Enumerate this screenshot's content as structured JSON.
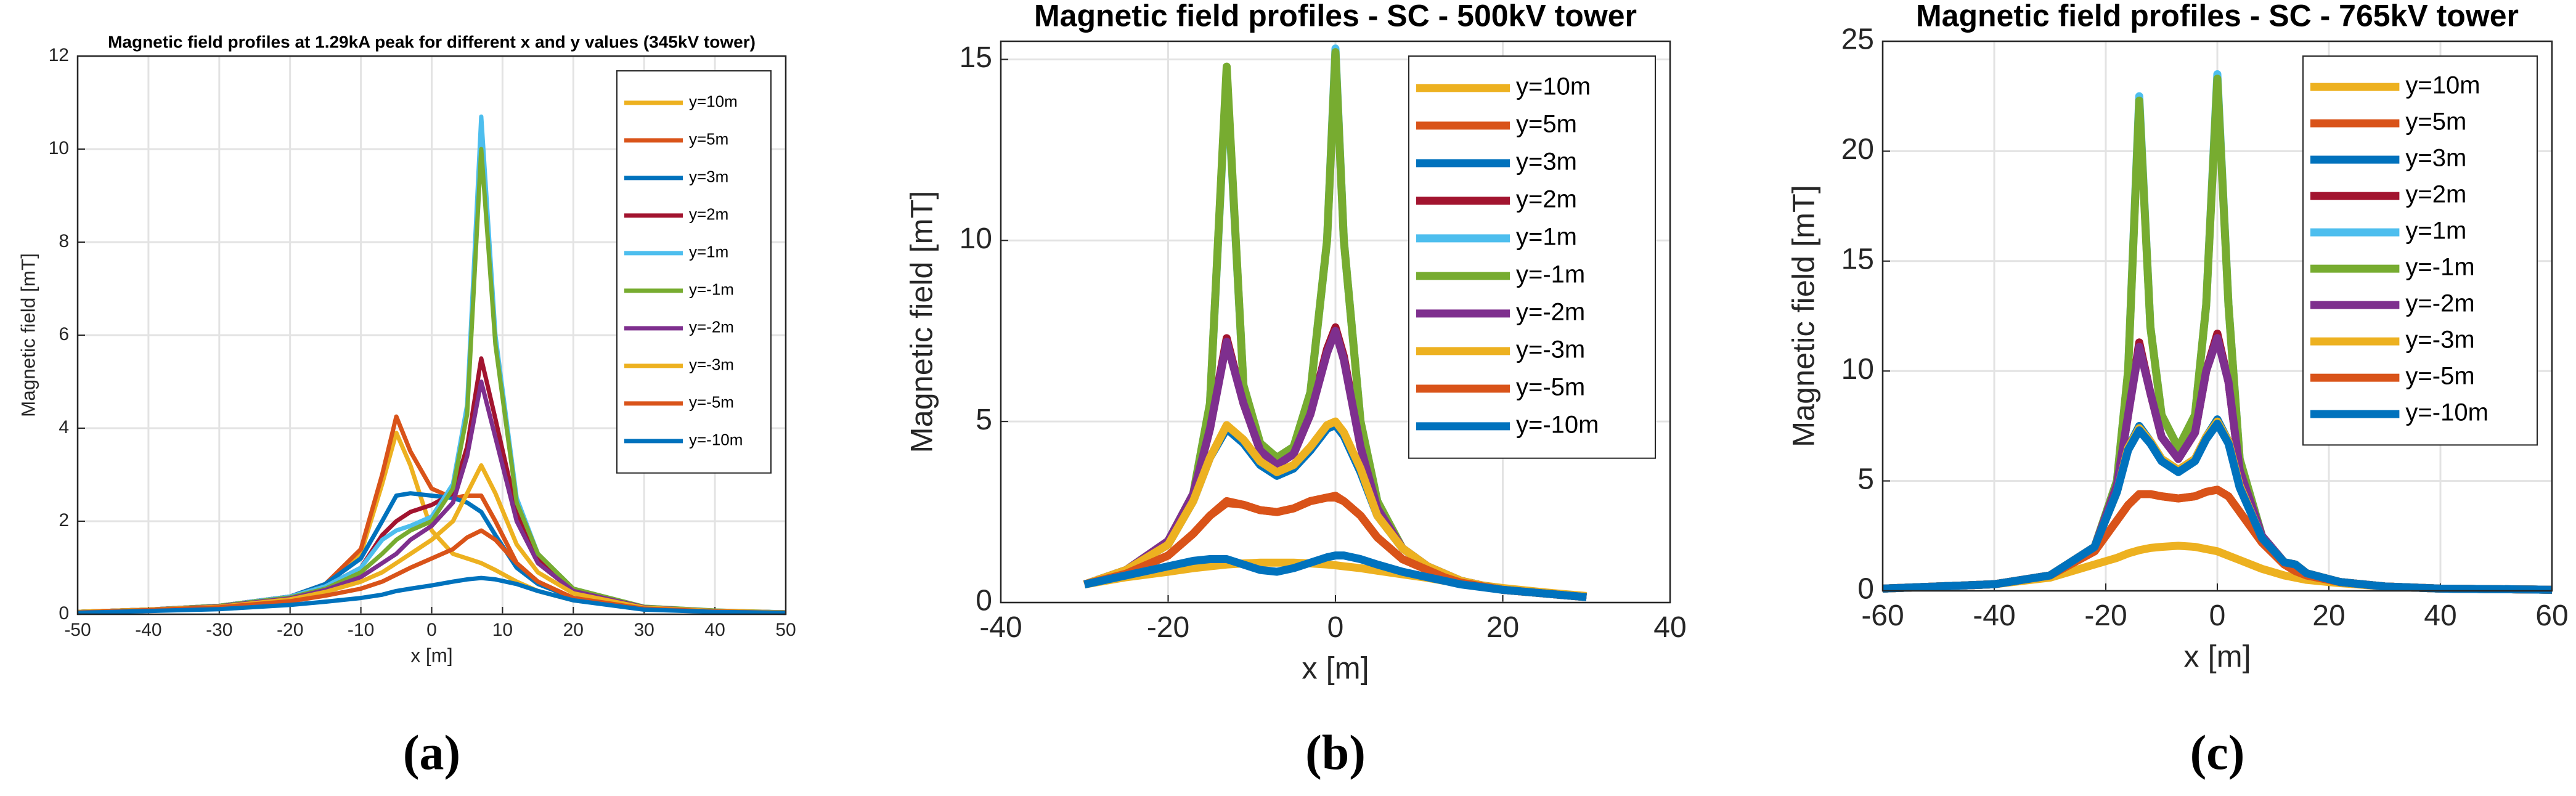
{
  "chart_data": [
    {
      "type": "line",
      "title": "Magnetic field profiles at 1.29kA peak for different x and y values (345kV tower)",
      "xlabel": "x [m]",
      "ylabel": "Magnetic field [mT]",
      "caption": "(a)",
      "x": [
        -50,
        -40,
        -30,
        -20,
        -15,
        -10,
        -7,
        -5,
        -3,
        0,
        3,
        5,
        7,
        9,
        12,
        15,
        20,
        30,
        40,
        50
      ],
      "xlim": [
        -50,
        50
      ],
      "xticks": [
        -50,
        -40,
        -30,
        -20,
        -10,
        0,
        10,
        20,
        30,
        40,
        50
      ],
      "ylim": [
        0,
        12
      ],
      "yticks": [
        0,
        2,
        4,
        6,
        8,
        10,
        12
      ],
      "grid": true,
      "legend": "upper right",
      "series": [
        {
          "name": "y=10m",
          "color": "#EDB120",
          "values": [
            0.05,
            0.1,
            0.17,
            0.35,
            0.6,
            1.3,
            2.8,
            3.9,
            3.2,
            1.8,
            1.3,
            1.2,
            1.1,
            0.95,
            0.7,
            0.5,
            0.3,
            0.12,
            0.07,
            0.04
          ]
        },
        {
          "name": "y=5m",
          "color": "#D95319",
          "values": [
            0.05,
            0.1,
            0.18,
            0.38,
            0.65,
            1.4,
            3.0,
            4.25,
            3.5,
            2.7,
            2.5,
            2.55,
            2.55,
            2.0,
            1.1,
            0.7,
            0.35,
            0.13,
            0.07,
            0.04
          ]
        },
        {
          "name": "y=3m",
          "color": "#0072BD",
          "values": [
            0.05,
            0.1,
            0.18,
            0.38,
            0.65,
            1.2,
            2.0,
            2.55,
            2.6,
            2.55,
            2.5,
            2.4,
            2.2,
            1.7,
            1.0,
            0.65,
            0.35,
            0.13,
            0.07,
            0.04
          ]
        },
        {
          "name": "y=2m",
          "color": "#A2142F",
          "values": [
            0.05,
            0.1,
            0.18,
            0.38,
            0.6,
            1.0,
            1.7,
            2.0,
            2.2,
            2.35,
            2.6,
            3.6,
            5.5,
            4.2,
            2.2,
            1.2,
            0.5,
            0.15,
            0.07,
            0.04
          ]
        },
        {
          "name": "y=1m",
          "color": "#4DBEEE",
          "values": [
            0.05,
            0.1,
            0.18,
            0.38,
            0.6,
            1.0,
            1.6,
            1.8,
            1.9,
            2.1,
            2.8,
            4.5,
            10.7,
            6.0,
            2.5,
            1.3,
            0.55,
            0.16,
            0.08,
            0.04
          ]
        },
        {
          "name": "y=-1m",
          "color": "#77AC30",
          "values": [
            0.05,
            0.1,
            0.18,
            0.36,
            0.55,
            0.9,
            1.3,
            1.6,
            1.8,
            2.0,
            2.7,
            4.3,
            10.0,
            5.8,
            2.4,
            1.3,
            0.55,
            0.16,
            0.08,
            0.04
          ]
        },
        {
          "name": "y=-2m",
          "color": "#7E2F8E",
          "values": [
            0.05,
            0.1,
            0.17,
            0.34,
            0.52,
            0.8,
            1.1,
            1.3,
            1.6,
            1.9,
            2.4,
            3.4,
            5.0,
            3.8,
            2.0,
            1.1,
            0.5,
            0.15,
            0.07,
            0.04
          ]
        },
        {
          "name": "y=-3m",
          "color": "#EDB120",
          "values": [
            0.05,
            0.1,
            0.16,
            0.32,
            0.48,
            0.7,
            0.9,
            1.1,
            1.3,
            1.6,
            2.0,
            2.6,
            3.2,
            2.6,
            1.5,
            0.9,
            0.45,
            0.14,
            0.07,
            0.04
          ]
        },
        {
          "name": "y=-5m",
          "color": "#D95319",
          "values": [
            0.04,
            0.09,
            0.15,
            0.28,
            0.4,
            0.55,
            0.7,
            0.85,
            1.0,
            1.2,
            1.4,
            1.65,
            1.8,
            1.6,
            1.1,
            0.7,
            0.35,
            0.12,
            0.06,
            0.03
          ]
        },
        {
          "name": "y=-10m",
          "color": "#0072BD",
          "values": [
            0.03,
            0.07,
            0.11,
            0.2,
            0.27,
            0.35,
            0.42,
            0.5,
            0.55,
            0.62,
            0.7,
            0.75,
            0.78,
            0.75,
            0.65,
            0.5,
            0.3,
            0.1,
            0.05,
            0.03
          ]
        }
      ]
    },
    {
      "type": "line",
      "title": "Magnetic field profiles - SC - 500kV tower",
      "xlabel": "x [m]",
      "ylabel": "Magnetic field [mT]",
      "caption": "(b)",
      "x": [
        -30,
        -25,
        -20,
        -17,
        -15,
        -13,
        -11,
        -9,
        -7,
        -5,
        -3,
        -1,
        0,
        1,
        3,
        5,
        8,
        11,
        13,
        15,
        20,
        25,
        30
      ],
      "xlim": [
        -40,
        40
      ],
      "xticks": [
        -40,
        -20,
        0,
        20,
        40
      ],
      "ylim": [
        0,
        15.5
      ],
      "yticks": [
        0,
        5,
        10,
        15
      ],
      "grid": true,
      "legend": "upper right",
      "series": [
        {
          "name": "y=10m",
          "color": "#EDB120",
          "values": [
            0.5,
            0.7,
            0.85,
            0.95,
            1.0,
            1.05,
            1.08,
            1.1,
            1.1,
            1.1,
            1.08,
            1.05,
            1.03,
            1.0,
            0.95,
            0.88,
            0.78,
            0.68,
            0.6,
            0.55,
            0.4,
            0.28,
            0.18
          ]
        },
        {
          "name": "y=5m",
          "color": "#D95319",
          "values": [
            0.5,
            0.8,
            1.3,
            1.9,
            2.4,
            2.75,
            2.7,
            2.55,
            2.5,
            2.6,
            2.8,
            2.9,
            2.9,
            2.8,
            2.4,
            1.8,
            1.2,
            0.9,
            0.7,
            0.55,
            0.35,
            0.25,
            0.15
          ]
        },
        {
          "name": "y=3m",
          "color": "#0072BD",
          "values": [
            0.5,
            0.9,
            1.6,
            2.8,
            4.0,
            4.8,
            4.4,
            3.8,
            3.5,
            3.7,
            4.2,
            4.8,
            4.9,
            4.6,
            3.6,
            2.4,
            1.5,
            1.0,
            0.8,
            0.6,
            0.35,
            0.25,
            0.15
          ]
        },
        {
          "name": "y=2m",
          "color": "#A2142F",
          "values": [
            0.5,
            0.9,
            1.7,
            3.0,
            4.8,
            7.3,
            5.5,
            4.2,
            3.8,
            4.1,
            5.2,
            7.0,
            7.6,
            6.8,
            4.3,
            2.6,
            1.5,
            1.0,
            0.8,
            0.6,
            0.35,
            0.25,
            0.15
          ]
        },
        {
          "name": "y=1m",
          "color": "#4DBEEE",
          "values": [
            0.5,
            0.9,
            1.7,
            3.0,
            5.5,
            14.7,
            6.0,
            4.4,
            4.0,
            4.3,
            5.8,
            10,
            15.3,
            10,
            5.0,
            2.8,
            1.5,
            1.0,
            0.8,
            0.6,
            0.35,
            0.25,
            0.15
          ]
        },
        {
          "name": "y=-1m",
          "color": "#77AC30",
          "values": [
            0.5,
            0.9,
            1.7,
            3.0,
            5.5,
            14.8,
            6.0,
            4.4,
            4.0,
            4.3,
            5.8,
            10,
            15.2,
            10,
            5.0,
            2.8,
            1.5,
            1.0,
            0.8,
            0.6,
            0.35,
            0.25,
            0.15
          ]
        },
        {
          "name": "y=-2m",
          "color": "#7E2F8E",
          "values": [
            0.5,
            0.9,
            1.7,
            3.0,
            4.8,
            7.2,
            5.5,
            4.2,
            3.8,
            4.1,
            5.2,
            6.9,
            7.5,
            6.7,
            4.3,
            2.6,
            1.5,
            1.0,
            0.8,
            0.6,
            0.35,
            0.25,
            0.15
          ]
        },
        {
          "name": "y=-3m",
          "color": "#EDB120",
          "values": [
            0.5,
            0.9,
            1.6,
            2.8,
            4.0,
            4.9,
            4.5,
            3.9,
            3.6,
            3.8,
            4.3,
            4.9,
            5.0,
            4.7,
            3.7,
            2.4,
            1.5,
            1.0,
            0.8,
            0.6,
            0.35,
            0.25,
            0.15
          ]
        },
        {
          "name": "y=-5m",
          "color": "#D95319",
          "values": [
            0.5,
            0.8,
            1.3,
            1.9,
            2.4,
            2.8,
            2.7,
            2.55,
            2.5,
            2.6,
            2.8,
            2.9,
            2.95,
            2.8,
            2.4,
            1.8,
            1.2,
            0.9,
            0.7,
            0.55,
            0.35,
            0.25,
            0.15
          ]
        },
        {
          "name": "y=-10m",
          "color": "#0072BD",
          "values": [
            0.5,
            0.75,
            1.0,
            1.15,
            1.2,
            1.2,
            1.05,
            0.9,
            0.85,
            0.95,
            1.1,
            1.25,
            1.3,
            1.3,
            1.2,
            1.05,
            0.85,
            0.7,
            0.6,
            0.5,
            0.35,
            0.25,
            0.15
          ]
        }
      ]
    },
    {
      "type": "line",
      "title": "Magnetic field profiles - SC - 765kV tower",
      "xlabel": "x [m]",
      "ylabel": "Magnetic field [mT]",
      "caption": "(c)",
      "x": [
        -60,
        -40,
        -30,
        -22,
        -18,
        -16,
        -14,
        -12,
        -10,
        -7,
        -4,
        -2,
        0,
        2,
        4,
        8,
        12,
        14,
        16,
        22,
        30,
        40,
        60
      ],
      "xlim": [
        -60,
        60
      ],
      "xticks": [
        -60,
        -40,
        -20,
        0,
        20,
        40,
        60
      ],
      "ylim": [
        0,
        25
      ],
      "yticks": [
        0,
        5,
        10,
        15,
        20,
        25
      ],
      "grid": true,
      "legend": "upper right",
      "series": [
        {
          "name": "y=10m",
          "color": "#EDB120",
          "values": [
            0.1,
            0.3,
            0.6,
            1.2,
            1.5,
            1.7,
            1.85,
            1.95,
            2.0,
            2.05,
            2.0,
            1.9,
            1.8,
            1.6,
            1.4,
            1.0,
            0.7,
            0.6,
            0.5,
            0.35,
            0.2,
            0.1,
            0.05
          ]
        },
        {
          "name": "y=5m",
          "color": "#D95319",
          "values": [
            0.1,
            0.3,
            0.7,
            1.8,
            3.2,
            3.9,
            4.4,
            4.4,
            4.3,
            4.2,
            4.3,
            4.5,
            4.6,
            4.3,
            3.6,
            2.2,
            1.2,
            0.9,
            0.7,
            0.4,
            0.2,
            0.1,
            0.05
          ]
        },
        {
          "name": "y=3m",
          "color": "#0072BD",
          "values": [
            0.1,
            0.3,
            0.7,
            2.0,
            4.5,
            6.5,
            7.5,
            6.8,
            6.0,
            5.5,
            6.0,
            7.0,
            7.8,
            6.8,
            4.8,
            2.4,
            1.3,
            1.2,
            0.8,
            0.4,
            0.2,
            0.1,
            0.05
          ]
        },
        {
          "name": "y=2m",
          "color": "#A2142F",
          "values": [
            0.1,
            0.3,
            0.7,
            2.0,
            4.8,
            8,
            11.3,
            9,
            7,
            6.0,
            7.2,
            10,
            11.7,
            9.5,
            5.5,
            2.5,
            1.3,
            1.2,
            0.8,
            0.4,
            0.2,
            0.1,
            0.05
          ]
        },
        {
          "name": "y=1m",
          "color": "#4DBEEE",
          "values": [
            0.1,
            0.3,
            0.7,
            2.0,
            5.0,
            10,
            22.5,
            12,
            8,
            6.5,
            8,
            13,
            23.5,
            13,
            6,
            2.5,
            1.3,
            1.2,
            0.8,
            0.4,
            0.2,
            0.1,
            0.05
          ]
        },
        {
          "name": "y=-1m",
          "color": "#77AC30",
          "values": [
            0.1,
            0.3,
            0.7,
            2.0,
            5.0,
            10,
            22.3,
            12,
            8,
            6.5,
            8,
            13,
            23.3,
            13,
            6,
            2.5,
            1.3,
            1.2,
            0.8,
            0.4,
            0.2,
            0.1,
            0.05
          ]
        },
        {
          "name": "y=-2m",
          "color": "#7E2F8E",
          "values": [
            0.1,
            0.3,
            0.7,
            2.0,
            4.8,
            8,
            11.1,
            9,
            7,
            6.0,
            7.2,
            10,
            11.5,
            9.5,
            5.5,
            2.5,
            1.3,
            1.2,
            0.8,
            0.4,
            0.2,
            0.1,
            0.05
          ]
        },
        {
          "name": "y=-3m",
          "color": "#EDB120",
          "values": [
            0.1,
            0.3,
            0.7,
            2.0,
            4.5,
            6.5,
            7.4,
            6.8,
            6.0,
            5.5,
            6.0,
            7.0,
            7.7,
            6.8,
            4.8,
            2.4,
            1.3,
            1.2,
            0.8,
            0.4,
            0.2,
            0.1,
            0.05
          ]
        },
        {
          "name": "y=-5m",
          "color": "#D95319",
          "values": [
            0.1,
            0.3,
            0.7,
            1.8,
            3.2,
            3.9,
            4.4,
            4.4,
            4.3,
            4.2,
            4.3,
            4.5,
            4.6,
            4.3,
            3.6,
            2.2,
            1.2,
            0.9,
            0.7,
            0.4,
            0.2,
            0.1,
            0.05
          ]
        },
        {
          "name": "y=-10m",
          "color": "#0072BD",
          "values": [
            0.1,
            0.3,
            0.7,
            2.0,
            4.5,
            6.4,
            7.3,
            6.7,
            5.9,
            5.4,
            5.9,
            6.9,
            7.6,
            6.7,
            4.7,
            2.4,
            1.3,
            1.2,
            0.8,
            0.4,
            0.2,
            0.1,
            0.05
          ]
        }
      ]
    }
  ]
}
